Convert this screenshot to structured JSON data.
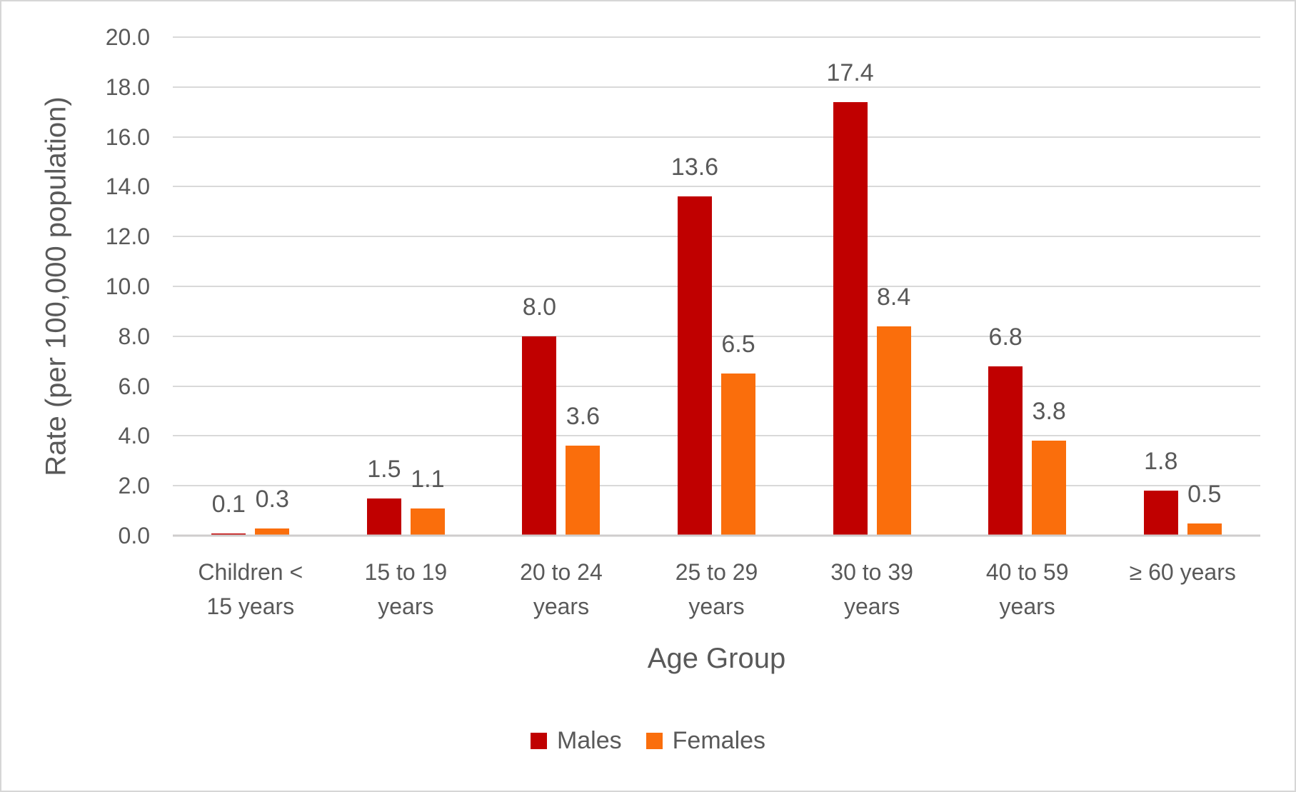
{
  "chart_data": {
    "type": "bar",
    "title": "",
    "xlabel": "Age Group",
    "ylabel": "Rate (per 100,000 population)",
    "categories": [
      "Children < 15 years",
      "15 to 19 years",
      "20 to 24 years",
      "25 to 29 years",
      "30 to 39 years",
      "40 to 59 years",
      "≥ 60 years"
    ],
    "series": [
      {
        "name": "Males",
        "color": "#c00000",
        "values": [
          0.1,
          1.5,
          8.0,
          13.6,
          17.4,
          6.8,
          1.8
        ],
        "value_labels": [
          "0.1",
          "1.5",
          "8.0",
          "13.6",
          "17.4",
          "6.8",
          "1.8"
        ]
      },
      {
        "name": "Females",
        "color": "#fa6e0c",
        "values": [
          0.3,
          1.1,
          3.6,
          6.5,
          8.4,
          3.8,
          0.5
        ],
        "value_labels": [
          "0.3",
          "1.1",
          "3.6",
          "6.5",
          "8.4",
          "3.8",
          "0.5"
        ]
      }
    ],
    "ylim": [
      0,
      20
    ],
    "ytick_step": 2,
    "ytick_labels": [
      "0.0",
      "2.0",
      "4.0",
      "6.0",
      "8.0",
      "10.0",
      "12.0",
      "14.0",
      "16.0",
      "18.0",
      "20.0"
    ],
    "grid": true,
    "data_labels": true,
    "legend_position": "bottom"
  },
  "colors": {
    "gridline": "#d9d9d9",
    "axis_line": "#cfcdcd",
    "text": "#595959",
    "background": "#ffffff",
    "border": "#d6d6d6"
  }
}
